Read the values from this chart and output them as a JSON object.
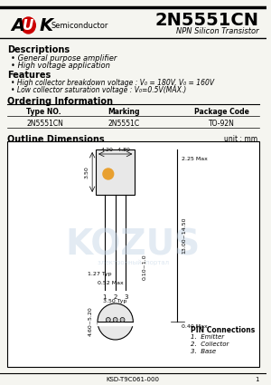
{
  "title": "2N5551CN",
  "subtitle": "NPN Silicon Transistor",
  "company": "A  K",
  "company_sub": "Semiconductor",
  "section1_title": "Descriptions",
  "desc_bullets": [
    "General purpose amplifier",
    "High voltage application"
  ],
  "section2_title": "Features",
  "feat_bullets": [
    "High collector breakdown voltage : V₀ = 180V, V₀ = 160V",
    "Low collector saturation voltage : V₀=0.5V(MAX.)"
  ],
  "section3_title": "Ordering Information",
  "table_headers": [
    "Type NO.",
    "Marking",
    "Package Code"
  ],
  "table_row": [
    "2N5551CN",
    "2N5551C",
    "TO-92N"
  ],
  "section4_title": "Outline Dimensions",
  "unit_label": "unit : mm",
  "pin_connections_title": "PIN Connections",
  "pin_connections": [
    "1.  Emitter",
    "2.  Collector",
    "3.  Base"
  ],
  "footer": "KSD-T9C061-000",
  "page": "1",
  "bg_color": "#f5f5f0",
  "diagram_bg": "#ffffff",
  "watermark_color": "#c8d8e8"
}
